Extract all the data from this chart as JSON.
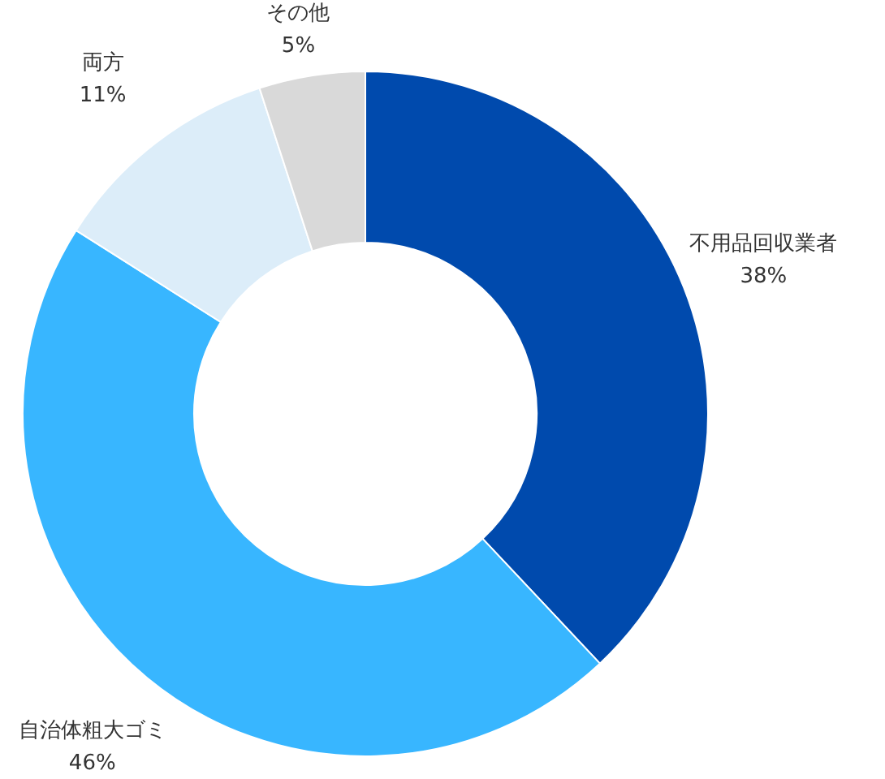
{
  "chart_data": {
    "type": "donut",
    "categories": [
      "不用品回収業者",
      "自治体粗大ゴミ",
      "両方",
      "その他"
    ],
    "values": [
      38,
      46,
      11,
      5
    ],
    "colors": [
      "#004aad",
      "#38b6ff",
      "#dcedf9",
      "#d9d9d9"
    ],
    "value_labels": [
      "38%",
      "46%",
      "11%",
      "5%"
    ]
  }
}
